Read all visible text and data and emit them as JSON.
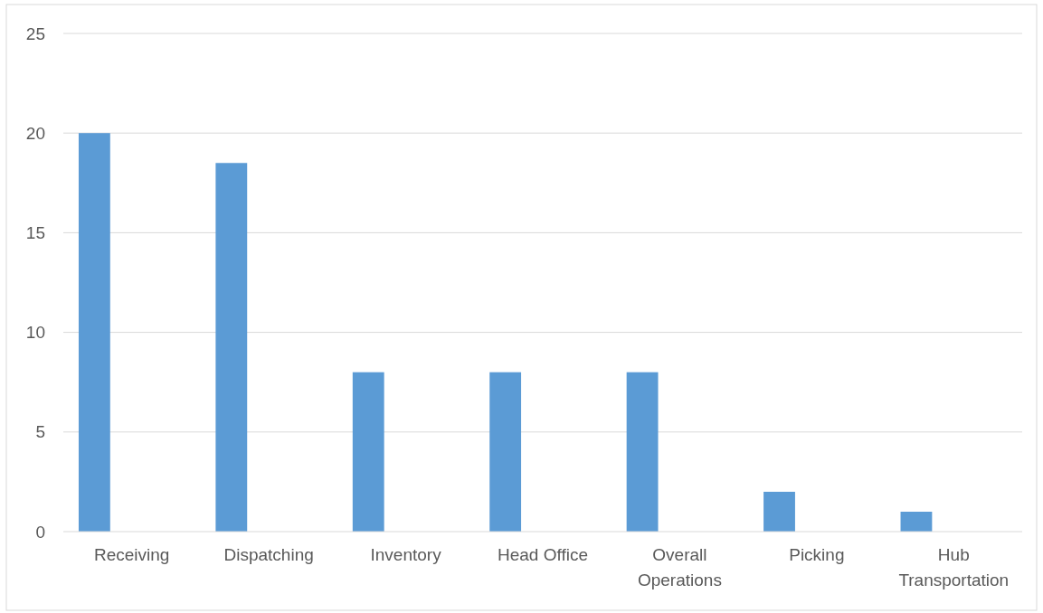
{
  "chart_data": {
    "type": "bar",
    "categories": [
      "Receiving",
      "Dispatching",
      "Inventory",
      "Head Office",
      "Overall Operations",
      "Picking",
      "Hub Transportation"
    ],
    "values": [
      20,
      18.5,
      8,
      8,
      8,
      2,
      1
    ],
    "color": "#5b9bd5",
    "ylim": [
      0,
      25
    ],
    "yticks": [
      0,
      5,
      10,
      15,
      20,
      25
    ],
    "grid": "y"
  }
}
